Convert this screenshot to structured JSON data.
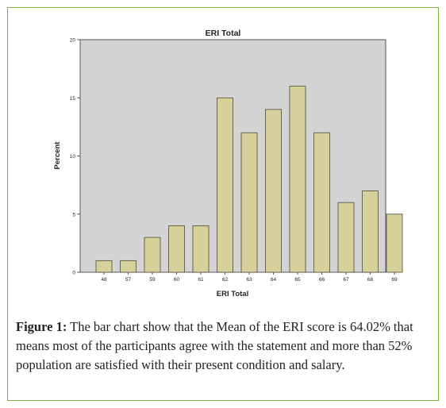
{
  "chart_data": {
    "type": "bar",
    "title": "ERI Total",
    "xlabel": "ERI Total",
    "ylabel": "Percent",
    "categories": [
      "48",
      "57",
      "59",
      "60",
      "61",
      "62",
      "63",
      "64",
      "65",
      "66",
      "67",
      "68",
      "69"
    ],
    "values": [
      1,
      1,
      3,
      4,
      4,
      15,
      12,
      14,
      16,
      12,
      6,
      7,
      5
    ],
    "ylim": [
      0,
      20
    ],
    "yticks": [
      0,
      5,
      10,
      15,
      20
    ],
    "grid": false,
    "colors": {
      "bar_fill": "#d8d09a",
      "bar_stroke": "#4a4a3a",
      "plot_bg": "#d4d4d4"
    }
  },
  "caption": {
    "label": "Figure 1:",
    "text": " The bar chart show that the Mean of the ERI score is 64.02% that means most of the participants agree with the statement and more than 52% population are satisfied with their present condition and salary."
  },
  "colors": {
    "frame_border": "#7fae3f"
  }
}
